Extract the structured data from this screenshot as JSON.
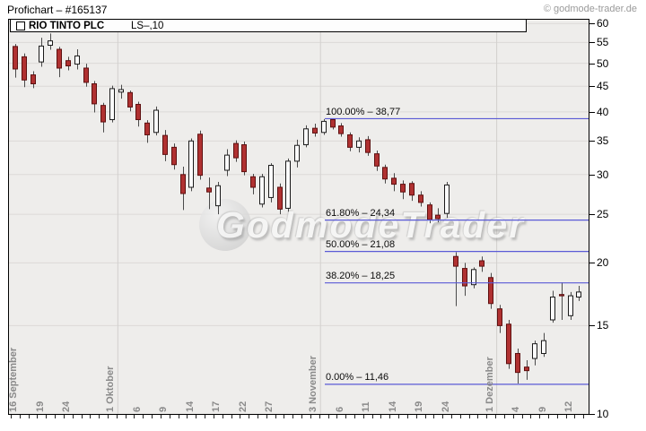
{
  "header": {
    "title": "Profichart – #165137",
    "copyright": "© godmode-trader.de"
  },
  "legend": {
    "symbol_name": "RIO TINTO PLC",
    "info": "LS–,10"
  },
  "watermark": {
    "text": "GodmodeTrader"
  },
  "colors": {
    "plot_bg": "#eeedeb",
    "grid": "#dcdad8",
    "month_line": "#d2d0ce",
    "up_fill": "#fcfcfc",
    "up_border": "#1a1a1a",
    "down_fill": "#b03131",
    "down_border": "#5e1010",
    "wick": "#4a4a4a",
    "fib_line": "#5a5ad6",
    "axis": "#000000",
    "x_label": "#8a8a8a"
  },
  "chart_data": {
    "type": "candlestick",
    "title": "RIO TINTO PLC",
    "y_axis": {
      "scale": "log",
      "range": [
        10,
        62
      ],
      "ticks": [
        10,
        15,
        20,
        25,
        30,
        35,
        40,
        45,
        50,
        55,
        60
      ],
      "position": "right",
      "grid": true
    },
    "x_ticks": [
      {
        "index": 1,
        "label": "16 September"
      },
      {
        "index": 4,
        "label": "19"
      },
      {
        "index": 7,
        "label": "24"
      },
      {
        "index": 12,
        "label": "1 Oktober"
      },
      {
        "index": 15,
        "label": "6"
      },
      {
        "index": 18,
        "label": "9"
      },
      {
        "index": 21,
        "label": "14"
      },
      {
        "index": 24,
        "label": "17"
      },
      {
        "index": 27,
        "label": "22"
      },
      {
        "index": 30,
        "label": "27"
      },
      {
        "index": 35,
        "label": "3 November"
      },
      {
        "index": 38,
        "label": "6"
      },
      {
        "index": 41,
        "label": "11"
      },
      {
        "index": 44,
        "label": "14"
      },
      {
        "index": 47,
        "label": "19"
      },
      {
        "index": 50,
        "label": "24"
      },
      {
        "index": 55,
        "label": "1 Dezember"
      },
      {
        "index": 58,
        "label": "4"
      },
      {
        "index": 61,
        "label": "9"
      },
      {
        "index": 64,
        "label": "12"
      }
    ],
    "month_separators": [
      12,
      35,
      55
    ],
    "fib_levels": [
      {
        "label": "100.00% – 38,77",
        "value": 38.77
      },
      {
        "label": "61.80% – 24,34",
        "value": 24.34
      },
      {
        "label": "50.00% – 21,08",
        "value": 21.08
      },
      {
        "label": "38.20% – 18,25",
        "value": 18.25
      },
      {
        "label": "0.00% – 11,46",
        "value": 11.46
      }
    ],
    "candles": [
      {
        "d": "15 Sep",
        "o": 54.0,
        "h": 54.6,
        "l": 46.8,
        "c": 48.7
      },
      {
        "d": "16 Sep",
        "o": 51.5,
        "h": 52.3,
        "l": 44.8,
        "c": 46.3
      },
      {
        "d": "17 Sep",
        "o": 47.4,
        "h": 48.2,
        "l": 44.6,
        "c": 45.5
      },
      {
        "d": "18 Sep",
        "o": 50.3,
        "h": 56.2,
        "l": 49.2,
        "c": 54.1
      },
      {
        "d": "19 Sep",
        "o": 54.3,
        "h": 57.3,
        "l": 53.2,
        "c": 55.4
      },
      {
        "d": "22 Sep",
        "o": 53.3,
        "h": 53.9,
        "l": 46.9,
        "c": 48.9
      },
      {
        "d": "23 Sep",
        "o": 50.6,
        "h": 51.5,
        "l": 48.4,
        "c": 49.4
      },
      {
        "d": "24 Sep",
        "o": 49.8,
        "h": 53.3,
        "l": 48.6,
        "c": 51.7
      },
      {
        "d": "25 Sep",
        "o": 48.9,
        "h": 49.9,
        "l": 44.9,
        "c": 45.8
      },
      {
        "d": "26 Sep",
        "o": 45.5,
        "h": 46.1,
        "l": 39.9,
        "c": 41.5
      },
      {
        "d": "29 Sep",
        "o": 41.2,
        "h": 41.7,
        "l": 36.4,
        "c": 38.2
      },
      {
        "d": "30 Sep",
        "o": 38.6,
        "h": 45.1,
        "l": 38.1,
        "c": 44.5
      },
      {
        "d": "1 Okt",
        "o": 43.8,
        "h": 45.3,
        "l": 42.5,
        "c": 44.3
      },
      {
        "d": "2 Okt",
        "o": 43.7,
        "h": 44.1,
        "l": 40.1,
        "c": 40.9
      },
      {
        "d": "3 Okt",
        "o": 41.4,
        "h": 41.9,
        "l": 37.4,
        "c": 38.6
      },
      {
        "d": "6 Okt",
        "o": 38.0,
        "h": 38.5,
        "l": 34.7,
        "c": 36.0
      },
      {
        "d": "7 Okt",
        "o": 36.4,
        "h": 41.0,
        "l": 35.9,
        "c": 40.3
      },
      {
        "d": "8 Okt",
        "o": 35.9,
        "h": 36.8,
        "l": 31.9,
        "c": 32.9
      },
      {
        "d": "9 Okt",
        "o": 34.0,
        "h": 34.6,
        "l": 30.7,
        "c": 31.4
      },
      {
        "d": "10 Okt",
        "o": 30.0,
        "h": 31.1,
        "l": 25.5,
        "c": 27.5
      },
      {
        "d": "13 Okt",
        "o": 28.3,
        "h": 35.4,
        "l": 27.8,
        "c": 35.0
      },
      {
        "d": "14 Okt",
        "o": 36.1,
        "h": 36.7,
        "l": 29.3,
        "c": 29.9
      },
      {
        "d": "15 Okt",
        "o": 28.2,
        "h": 29.6,
        "l": 25.6,
        "c": 27.7
      },
      {
        "d": "16 Okt",
        "o": 26.0,
        "h": 29.0,
        "l": 25.0,
        "c": 28.5
      },
      {
        "d": "17 Okt",
        "o": 30.6,
        "h": 33.7,
        "l": 29.8,
        "c": 32.8
      },
      {
        "d": "20 Okt",
        "o": 34.6,
        "h": 35.1,
        "l": 31.8,
        "c": 32.4
      },
      {
        "d": "21 Okt",
        "o": 34.4,
        "h": 34.9,
        "l": 29.9,
        "c": 30.4
      },
      {
        "d": "22 Okt",
        "o": 29.7,
        "h": 30.1,
        "l": 27.4,
        "c": 28.3
      },
      {
        "d": "23 Okt",
        "o": 26.2,
        "h": 30.1,
        "l": 25.8,
        "c": 29.7
      },
      {
        "d": "24 Okt",
        "o": 27.0,
        "h": 31.6,
        "l": 26.4,
        "c": 31.3
      },
      {
        "d": "27 Okt",
        "o": 28.3,
        "h": 28.8,
        "l": 25.0,
        "c": 25.6
      },
      {
        "d": "28 Okt",
        "o": 25.7,
        "h": 32.3,
        "l": 25.3,
        "c": 31.9
      },
      {
        "d": "29 Okt",
        "o": 31.9,
        "h": 35.2,
        "l": 31.0,
        "c": 34.3
      },
      {
        "d": "30 Okt",
        "o": 34.4,
        "h": 37.6,
        "l": 34.0,
        "c": 37.0
      },
      {
        "d": "31 Okt",
        "o": 37.1,
        "h": 37.9,
        "l": 35.7,
        "c": 36.3
      },
      {
        "d": "3 Nov",
        "o": 36.4,
        "h": 38.7,
        "l": 36.0,
        "c": 38.3
      },
      {
        "d": "4 Nov",
        "o": 38.6,
        "h": 38.77,
        "l": 36.9,
        "c": 37.3
      },
      {
        "d": "5 Nov",
        "o": 37.5,
        "h": 38.0,
        "l": 35.7,
        "c": 36.2
      },
      {
        "d": "6 Nov",
        "o": 36.0,
        "h": 36.4,
        "l": 33.4,
        "c": 34.0
      },
      {
        "d": "7 Nov",
        "o": 34.0,
        "h": 35.6,
        "l": 33.2,
        "c": 35.0
      },
      {
        "d": "10 Nov",
        "o": 35.2,
        "h": 35.8,
        "l": 32.7,
        "c": 33.2
      },
      {
        "d": "11 Nov",
        "o": 33.0,
        "h": 33.5,
        "l": 30.5,
        "c": 31.2
      },
      {
        "d": "12 Nov",
        "o": 31.0,
        "h": 31.4,
        "l": 28.8,
        "c": 29.4
      },
      {
        "d": "13 Nov",
        "o": 29.5,
        "h": 30.2,
        "l": 27.8,
        "c": 28.7
      },
      {
        "d": "14 Nov",
        "o": 28.7,
        "h": 29.2,
        "l": 26.8,
        "c": 27.7
      },
      {
        "d": "17 Nov",
        "o": 28.8,
        "h": 29.1,
        "l": 26.6,
        "c": 27.3
      },
      {
        "d": "18 Nov",
        "o": 27.3,
        "h": 27.8,
        "l": 25.9,
        "c": 26.4
      },
      {
        "d": "19 Nov",
        "o": 26.1,
        "h": 26.4,
        "l": 24.0,
        "c": 24.4
      },
      {
        "d": "20 Nov",
        "o": 24.9,
        "h": 25.7,
        "l": 24.1,
        "c": 24.5
      },
      {
        "d": "21 Nov",
        "o": 25.1,
        "h": 29.0,
        "l": 24.6,
        "c": 28.6
      },
      {
        "d": "24 Nov",
        "o": 20.6,
        "h": 21.0,
        "l": 16.4,
        "c": 19.7
      },
      {
        "d": "25 Nov",
        "o": 19.5,
        "h": 20.0,
        "l": 17.2,
        "c": 18.0
      },
      {
        "d": "26 Nov",
        "o": 18.1,
        "h": 19.6,
        "l": 17.8,
        "c": 19.4
      },
      {
        "d": "27 Nov",
        "o": 20.2,
        "h": 20.6,
        "l": 19.2,
        "c": 19.7
      },
      {
        "d": "28 Nov",
        "o": 18.7,
        "h": 19.1,
        "l": 16.2,
        "c": 16.6
      },
      {
        "d": "1 Dez",
        "o": 16.2,
        "h": 16.5,
        "l": 14.5,
        "c": 15.0
      },
      {
        "d": "2 Dez",
        "o": 15.1,
        "h": 15.4,
        "l": 12.3,
        "c": 12.6
      },
      {
        "d": "3 Dez",
        "o": 13.2,
        "h": 13.5,
        "l": 11.5,
        "c": 12.1
      },
      {
        "d": "4 Dez",
        "o": 12.4,
        "h": 12.8,
        "l": 11.7,
        "c": 12.2
      },
      {
        "d": "5 Dez",
        "o": 12.9,
        "h": 14.0,
        "l": 12.5,
        "c": 13.8
      },
      {
        "d": "8 Dez",
        "o": 13.2,
        "h": 14.5,
        "l": 13.0,
        "c": 14.0
      },
      {
        "d": "9 Dez",
        "o": 15.4,
        "h": 17.6,
        "l": 15.2,
        "c": 17.1
      },
      {
        "d": "10 Dez",
        "o": 17.3,
        "h": 18.3,
        "l": 15.4,
        "c": 17.2
      },
      {
        "d": "11 Dez",
        "o": 15.7,
        "h": 17.5,
        "l": 15.4,
        "c": 17.2
      },
      {
        "d": "12 Dez",
        "o": 17.1,
        "h": 18.0,
        "l": 16.8,
        "c": 17.5
      }
    ]
  }
}
